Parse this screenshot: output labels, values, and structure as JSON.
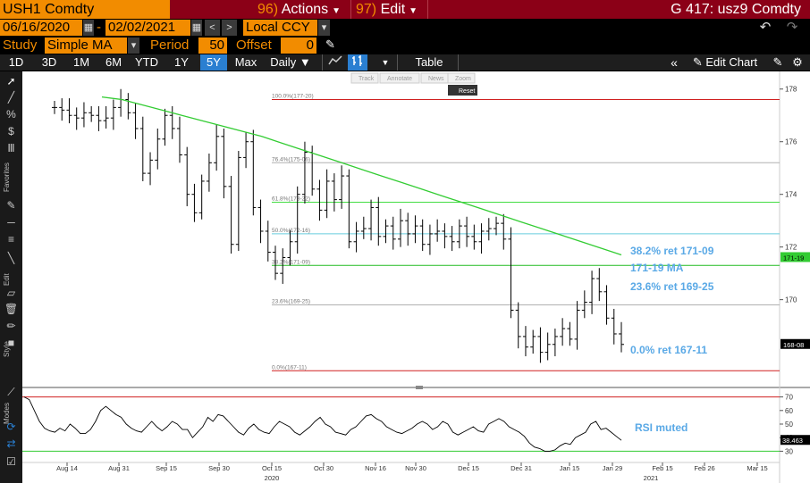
{
  "toolbar1": {
    "ticker": "USH1 Comdty",
    "actions_num": "96)",
    "actions_label": "Actions",
    "edit_num": "97)",
    "edit_label": "Edit",
    "page_title": "G 417: usz9 Comdty"
  },
  "toolbar2": {
    "start_date": "06/16/2020",
    "date_sep": "-",
    "end_date": "02/02/2021",
    "currency": "Local CCY"
  },
  "toolbar3": {
    "study_label": "Study",
    "study_value": "Simple MA",
    "period_label": "Period",
    "period_value": "50",
    "offset_label": "Offset",
    "offset_value": "0"
  },
  "toolbar4": {
    "periods": [
      "1D",
      "3D",
      "1M",
      "6M",
      "YTD",
      "1Y",
      "5Y",
      "Max"
    ],
    "selected": "5Y",
    "frequency": "Daily",
    "table_label": "Table",
    "edit_chart_label": "Edit Chart"
  },
  "side_labels": {
    "favorites": "Favorites",
    "edit": "Edit",
    "style": "Style",
    "modes": "Modes"
  },
  "zoom_controls": {
    "track": "Track",
    "annotate": "Annotate",
    "news": "News",
    "zoom": "Zoom",
    "reset": "Reset"
  },
  "annotations": {
    "ret_382": "38.2% ret 171-09",
    "ma": "171-19 MA",
    "ret_236": "23.6% ret 169-25",
    "ret_0": "0.0% ret 167-11",
    "rsi": "RSI muted"
  },
  "fib_levels": [
    {
      "label": "100.0%(177-20)",
      "value": 177.6,
      "color": "#d02020"
    },
    {
      "label": "76.4%(175-06)",
      "value": 175.2,
      "color": "#b0b0b0"
    },
    {
      "label": "61.8%(173-22)",
      "value": 173.7,
      "color": "#44dd44"
    },
    {
      "label": "50.0%(172-16)",
      "value": 172.5,
      "color": "#66ccdd"
    },
    {
      "label": "38.2%(171-09)",
      "value": 171.3,
      "color": "#22bb22"
    },
    {
      "label": "23.6%(169-25)",
      "value": 169.8,
      "color": "#b0b0b0"
    },
    {
      "label": "0.0%(167-11)",
      "value": 167.3,
      "color": "#d02020"
    }
  ],
  "price_axis": {
    "ticks": [
      "178",
      "176",
      "174",
      "172",
      "170"
    ],
    "tick_values": [
      178,
      176,
      174,
      172,
      170
    ],
    "current_ma_label": "171-19",
    "current_price_label": "168-08",
    "ylim": [
      166.8,
      178.5
    ]
  },
  "rsi_axis": {
    "ticks": [
      "70",
      "60",
      "50",
      "40",
      "30"
    ],
    "tick_values": [
      70,
      60,
      50,
      40,
      30
    ],
    "current_label": "38.463",
    "upper_band": 70,
    "lower_band": 30
  },
  "x_axis": {
    "labels": [
      "Aug 14",
      "Aug 31",
      "Sep 15",
      "Sep 30",
      "Oct 15",
      "Oct 30",
      "Nov 16",
      "Nov 30",
      "Dec 15",
      "Dec 31",
      "Jan 15",
      "Jan 29",
      "Feb 15",
      "Feb 26",
      "Mar 15"
    ],
    "years": [
      "2020",
      "2021"
    ]
  },
  "chart_data": [
    {
      "type": "line",
      "title": "",
      "series": [
        {
          "name": "",
          "kind": "ohlc_close",
          "values": [
            177.3,
            177.2,
            177.0,
            176.9,
            177.1,
            177.0,
            176.8,
            176.9,
            177.3,
            177.6,
            177.1,
            176.5,
            174.8,
            175.3,
            176.1,
            177.0,
            176.5,
            175.5,
            174.0,
            173.3,
            174.5,
            175.2,
            176.2,
            174.3,
            172.1,
            175.4,
            176.0,
            173.5,
            172.6,
            171.8,
            171.0,
            171.6,
            172.2,
            174.0,
            175.6,
            174.2,
            173.4,
            174.5,
            173.8,
            174.7,
            172.2,
            172.6,
            172.7,
            173.5,
            172.4,
            172.8,
            172.3,
            173.0,
            172.5,
            172.8,
            172.1,
            172.5,
            172.6,
            172.4,
            172.2,
            172.8,
            172.4,
            172.2,
            172.6,
            172.7,
            172.9,
            172.3,
            169.6,
            168.6,
            168.2,
            168.6,
            168.0,
            168.3,
            168.6,
            168.9,
            168.5,
            169.6,
            169.9,
            170.8,
            170.3,
            169.3,
            168.7,
            168.3
          ]
        },
        {
          "name": "",
          "kind": "moving_average",
          "values": [
            177.7,
            177.6,
            177.4,
            177.2,
            177.0,
            176.8,
            176.6,
            176.4,
            176.2,
            175.95,
            175.7,
            175.45,
            175.2,
            174.95,
            174.7,
            174.45,
            174.2,
            173.95,
            173.7,
            173.45,
            173.2,
            172.95,
            172.7,
            172.45,
            172.2,
            171.95,
            171.7
          ]
        }
      ]
    },
    {
      "type": "line",
      "title": "",
      "series": [
        {
          "name": "",
          "values": [
            70,
            68,
            60,
            52,
            47,
            45,
            44,
            47,
            45,
            50,
            47,
            43,
            43,
            46,
            52,
            60,
            63,
            60,
            57,
            55,
            50,
            47,
            45,
            44,
            48,
            52,
            48,
            45,
            48,
            52,
            50,
            46,
            46,
            40,
            44,
            48,
            55,
            52,
            57,
            56,
            52,
            48,
            44,
            42,
            47,
            50,
            46,
            44,
            43,
            48,
            52,
            50,
            48,
            44,
            42,
            45,
            48,
            52,
            55,
            50,
            48,
            44,
            43,
            42,
            46,
            48,
            52,
            56,
            57,
            54,
            52,
            48,
            46,
            44,
            43,
            45,
            47,
            50,
            52,
            50,
            46,
            48,
            52,
            50,
            44,
            42,
            44,
            46,
            48,
            45,
            44,
            50,
            52,
            54,
            52,
            48,
            46,
            44,
            41,
            36,
            33,
            32,
            30,
            30,
            31,
            34,
            36,
            35,
            40,
            42,
            44,
            50,
            52,
            46,
            47,
            44,
            41,
            38
          ]
        }
      ]
    }
  ]
}
